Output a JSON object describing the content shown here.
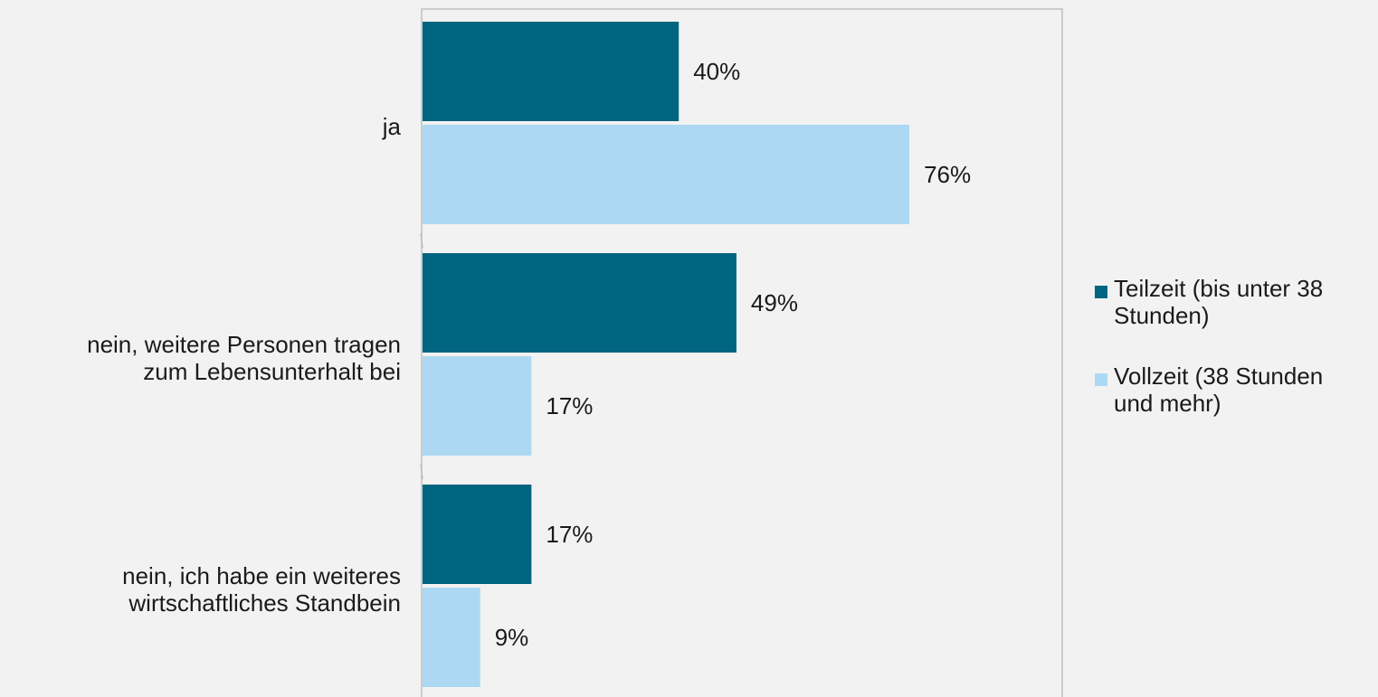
{
  "chart_data": {
    "type": "bar",
    "orientation": "horizontal",
    "categories": [
      "ja",
      "nein, weitere Personen tragen\nzum Lebensunterhalt bei",
      "nein, ich habe ein weiteres\nwirtschaftliches Standbein"
    ],
    "series": [
      {
        "name": "Teilzeit (bis unter 38 Stunden)",
        "values": [
          40,
          49,
          17
        ],
        "labels": [
          "40%",
          "49%",
          "17%"
        ],
        "color": "#006580"
      },
      {
        "name": "Vollzeit (38 Stunden und mehr)",
        "values": [
          76,
          17,
          9
        ],
        "labels": [
          "76%",
          "17%",
          "9%"
        ],
        "color": "#add8f3"
      }
    ],
    "xlim": [
      0,
      100
    ],
    "unit": "%",
    "legend_position": "right",
    "grid": false
  },
  "legend": {
    "items": [
      {
        "label": "Teilzeit (bis unter 38\nStunden)",
        "color": "#006580"
      },
      {
        "label": "Vollzeit (38 Stunden\nund mehr)",
        "color": "#add8f3"
      }
    ]
  },
  "colors": {
    "background": "#f2f2f2",
    "axis": "#bfbfbf",
    "text": "#1a1a1a"
  }
}
